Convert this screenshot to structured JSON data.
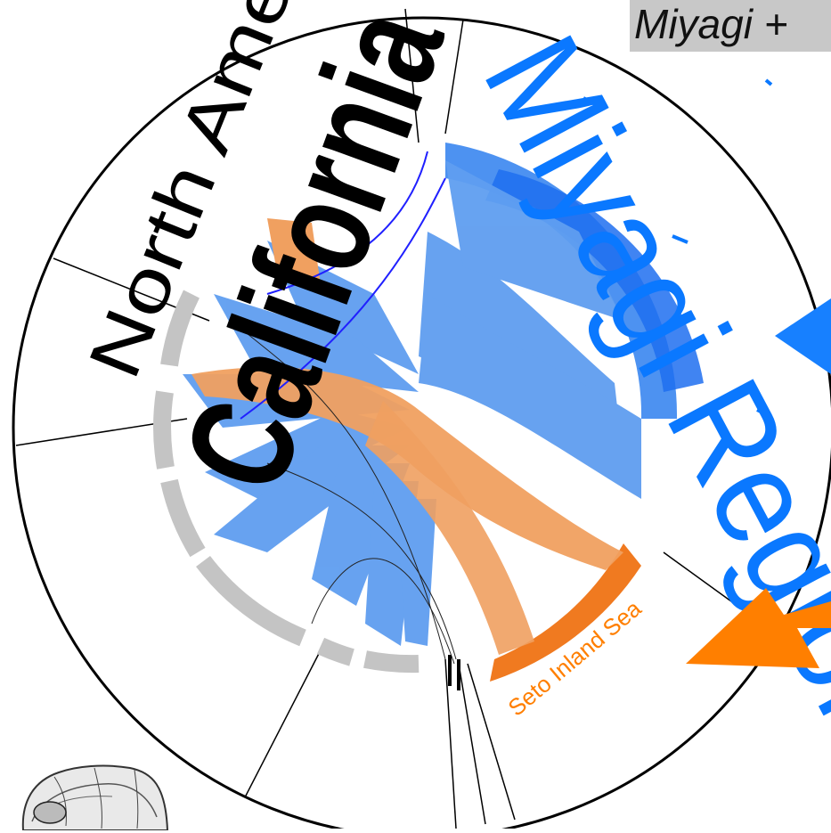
{
  "title": "Miyagi +",
  "regions": {
    "north_america": "North America",
    "california": "California",
    "miyagi": "Miyagi Region",
    "seto": "Seto Inland Sea"
  },
  "colors": {
    "miyagi": "#3a86f0",
    "miyagi_light": "#5f9ef0",
    "seto": "#f0a060",
    "seto_dark": "#f07a20",
    "arrow_orange": "#ff7f00",
    "arrow_blue": "#1780ff",
    "other": "#c4c4c4",
    "text_blue": "#0a78ff",
    "text_orange": "#ff7f00"
  },
  "icons": {
    "blue_arrow": "arrow-left-icon",
    "orange_arrow": "arrow-down-left-icon",
    "oyster": "oyster-shell-icon"
  }
}
